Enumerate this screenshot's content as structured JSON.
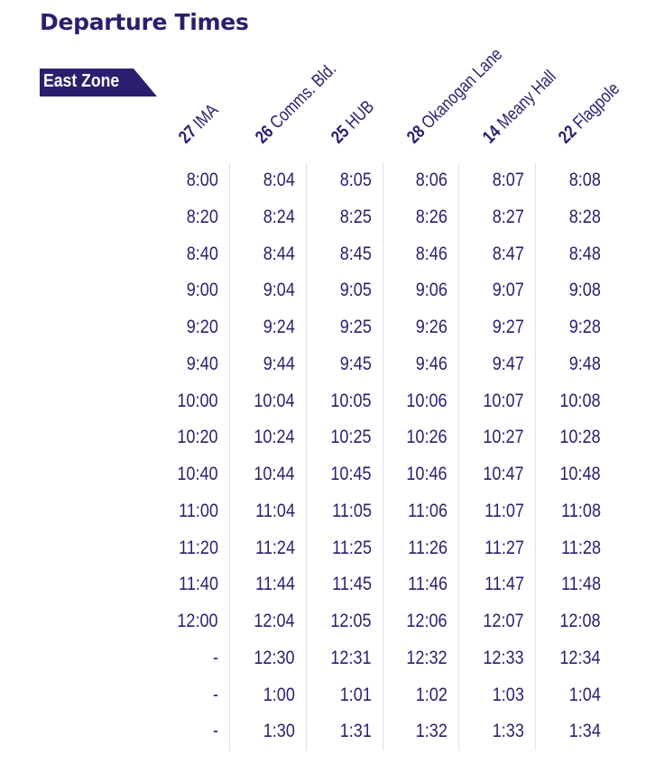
{
  "page_title": "Departure Times",
  "zone_label": "East Zone",
  "colors": {
    "primary": "#2a1f6e",
    "divider": "#e2e0ec"
  },
  "stops": [
    {
      "number": "27",
      "name": "IMA"
    },
    {
      "number": "26",
      "name": "Comms. Bld."
    },
    {
      "number": "25",
      "name": "HUB"
    },
    {
      "number": "28",
      "name": "Okanogan Lane"
    },
    {
      "number": "14",
      "name": "Meany Hall"
    },
    {
      "number": "22",
      "name": "Flagpole"
    }
  ],
  "rows": [
    [
      "8:00",
      "8:04",
      "8:05",
      "8:06",
      "8:07",
      "8:08"
    ],
    [
      "8:20",
      "8:24",
      "8:25",
      "8:26",
      "8:27",
      "8:28"
    ],
    [
      "8:40",
      "8:44",
      "8:45",
      "8:46",
      "8:47",
      "8:48"
    ],
    [
      "9:00",
      "9:04",
      "9:05",
      "9:06",
      "9:07",
      "9:08"
    ],
    [
      "9:20",
      "9:24",
      "9:25",
      "9:26",
      "9:27",
      "9:28"
    ],
    [
      "9:40",
      "9:44",
      "9:45",
      "9:46",
      "9:47",
      "9:48"
    ],
    [
      "10:00",
      "10:04",
      "10:05",
      "10:06",
      "10:07",
      "10:08"
    ],
    [
      "10:20",
      "10:24",
      "10:25",
      "10:26",
      "10:27",
      "10:28"
    ],
    [
      "10:40",
      "10:44",
      "10:45",
      "10:46",
      "10:47",
      "10:48"
    ],
    [
      "11:00",
      "11:04",
      "11:05",
      "11:06",
      "11:07",
      "11:08"
    ],
    [
      "11:20",
      "11:24",
      "11:25",
      "11:26",
      "11:27",
      "11:28"
    ],
    [
      "11:40",
      "11:44",
      "11:45",
      "11:46",
      "11:47",
      "11:48"
    ],
    [
      "12:00",
      "12:04",
      "12:05",
      "12:06",
      "12:07",
      "12:08"
    ],
    [
      "-",
      "12:30",
      "12:31",
      "12:32",
      "12:33",
      "12:34"
    ],
    [
      "-",
      "1:00",
      "1:01",
      "1:02",
      "1:03",
      "1:04"
    ],
    [
      "-",
      "1:30",
      "1:31",
      "1:32",
      "1:33",
      "1:34"
    ]
  ]
}
